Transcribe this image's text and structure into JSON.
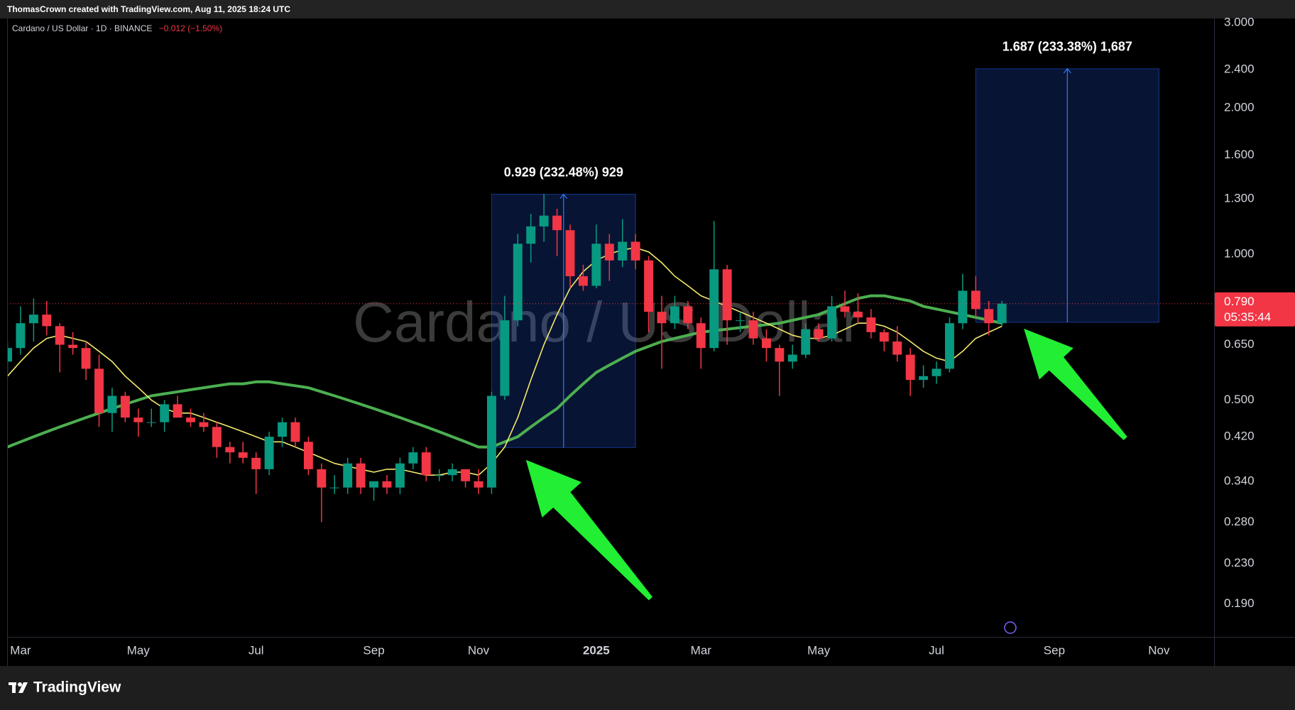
{
  "header": "ThomasCrown created with TradingView.com, Aug 11, 2025 18:24 UTC",
  "footer": "TradingView",
  "chart_data": {
    "type": "candlestick",
    "legend": "Cardano / US Dollar · 1D · BINANCE",
    "change": "−0.012 (−1.50%)",
    "watermark": "Cardano / US Dollar",
    "categories": [
      null,
      "Mar",
      null,
      null,
      null,
      null,
      null,
      null,
      null,
      null,
      "May",
      null,
      null,
      null,
      null,
      null,
      null,
      null,
      null,
      "Jul",
      null,
      null,
      null,
      null,
      null,
      null,
      null,
      null,
      "Sep",
      null,
      null,
      null,
      null,
      null,
      null,
      null,
      "Nov",
      null,
      null,
      null,
      null,
      null,
      null,
      null,
      null,
      "2025",
      null,
      null,
      null,
      null,
      null,
      null,
      null,
      "Mar",
      null,
      null,
      null,
      null,
      null,
      null,
      null,
      null,
      "May",
      null,
      null,
      null,
      null,
      null,
      null,
      null,
      null,
      "Jul",
      null,
      null,
      null,
      null,
      null,
      null,
      null,
      null,
      "Sep",
      null,
      null,
      null,
      null,
      null,
      null,
      null,
      "Nov",
      null,
      null,
      null,
      null
    ],
    "open": [
      0.6,
      0.64,
      0.72,
      0.75,
      0.71,
      0.65,
      0.64,
      0.58,
      0.47,
      0.51,
      0.46,
      0.45,
      0.45,
      0.49,
      0.46,
      0.45,
      0.44,
      0.4,
      0.39,
      0.38,
      0.36,
      0.42,
      0.45,
      0.41,
      0.36,
      0.33,
      0.33,
      0.37,
      0.33,
      0.34,
      0.33,
      0.37,
      0.39,
      0.35,
      0.35,
      0.36,
      0.34,
      0.33,
      0.51,
      0.73,
      1.05,
      1.14,
      1.2,
      1.12,
      0.9,
      0.86,
      1.05,
      0.97,
      1.06,
      0.97,
      0.76,
      0.72,
      0.78,
      0.72,
      0.64,
      0.93,
      0.73,
      0.73,
      0.67,
      0.64,
      0.6,
      0.62,
      0.7,
      0.67,
      0.78,
      0.76,
      0.74,
      0.69,
      0.66,
      0.62,
      0.55,
      0.56,
      0.58,
      0.72,
      0.84,
      0.77,
      0.72,
      null,
      null,
      null,
      null,
      null,
      null,
      null,
      null,
      null,
      null,
      null,
      null,
      null,
      null,
      null,
      null
    ],
    "high": [
      0.66,
      0.78,
      0.81,
      0.8,
      0.72,
      0.69,
      0.66,
      0.62,
      0.53,
      0.52,
      0.48,
      0.48,
      0.5,
      0.51,
      0.48,
      0.47,
      0.45,
      0.41,
      0.41,
      0.39,
      0.43,
      0.46,
      0.46,
      0.42,
      0.37,
      0.35,
      0.38,
      0.38,
      0.34,
      0.35,
      0.38,
      0.4,
      0.4,
      0.36,
      0.37,
      0.36,
      0.36,
      0.52,
      0.82,
      1.1,
      1.21,
      1.33,
      1.24,
      1.15,
      0.95,
      1.15,
      1.1,
      1.18,
      1.1,
      0.99,
      0.82,
      0.82,
      0.8,
      0.74,
      1.17,
      0.95,
      0.76,
      0.76,
      0.7,
      0.65,
      0.65,
      0.72,
      0.72,
      0.82,
      0.84,
      0.83,
      0.77,
      0.7,
      0.71,
      0.64,
      0.59,
      0.6,
      0.74,
      0.91,
      0.9,
      0.8,
      0.8,
      null,
      null,
      null,
      null,
      null,
      null,
      null,
      null,
      null,
      null,
      null,
      null,
      null,
      null,
      null,
      null
    ],
    "low": [
      0.57,
      0.62,
      0.66,
      0.68,
      0.57,
      0.62,
      0.55,
      0.44,
      0.43,
      0.45,
      0.42,
      0.44,
      0.43,
      0.46,
      0.44,
      0.43,
      0.38,
      0.37,
      0.37,
      0.32,
      0.35,
      0.4,
      0.4,
      0.35,
      0.28,
      0.32,
      0.32,
      0.32,
      0.31,
      0.32,
      0.32,
      0.36,
      0.34,
      0.34,
      0.34,
      0.33,
      0.32,
      0.32,
      0.5,
      0.71,
      0.96,
      1.06,
      0.99,
      0.85,
      0.84,
      0.85,
      0.88,
      0.94,
      0.93,
      0.69,
      0.58,
      0.7,
      0.7,
      0.58,
      0.63,
      0.65,
      0.69,
      0.65,
      0.6,
      0.51,
      0.58,
      0.61,
      0.66,
      0.66,
      0.74,
      0.72,
      0.67,
      0.63,
      0.6,
      0.51,
      0.53,
      0.54,
      0.57,
      0.7,
      0.74,
      0.68,
      0.71,
      null,
      null,
      null,
      null,
      null,
      null,
      null,
      null,
      null,
      null,
      null,
      null,
      null,
      null,
      null,
      null
    ],
    "close": [
      0.64,
      0.72,
      0.75,
      0.71,
      0.65,
      0.64,
      0.58,
      0.47,
      0.51,
      0.46,
      0.45,
      0.45,
      0.49,
      0.46,
      0.45,
      0.44,
      0.4,
      0.39,
      0.38,
      0.36,
      0.42,
      0.45,
      0.41,
      0.36,
      0.33,
      0.33,
      0.37,
      0.33,
      0.34,
      0.33,
      0.37,
      0.39,
      0.35,
      0.35,
      0.36,
      0.34,
      0.33,
      0.51,
      0.73,
      1.05,
      1.14,
      1.2,
      1.12,
      0.9,
      0.86,
      1.05,
      0.97,
      1.06,
      0.97,
      0.76,
      0.72,
      0.78,
      0.72,
      0.64,
      0.93,
      0.73,
      0.73,
      0.67,
      0.64,
      0.6,
      0.62,
      0.7,
      0.67,
      0.78,
      0.76,
      0.74,
      0.69,
      0.66,
      0.62,
      0.55,
      0.56,
      0.58,
      0.72,
      0.84,
      0.77,
      0.72,
      0.79,
      null,
      null,
      null,
      null,
      null,
      null,
      null,
      null,
      null,
      null,
      null,
      null,
      null,
      null,
      null,
      null
    ],
    "up_color": "#089981",
    "down_color": "#f23645",
    "series": [
      {
        "color": "#4caf50",
        "values": [
          0.4,
          0.41,
          0.42,
          0.43,
          0.44,
          0.45,
          0.46,
          0.47,
          0.48,
          0.49,
          0.5,
          0.51,
          0.515,
          0.52,
          0.525,
          0.53,
          0.535,
          0.54,
          0.54,
          0.545,
          0.545,
          0.54,
          0.535,
          0.53,
          0.52,
          0.51,
          0.5,
          0.49,
          0.48,
          0.47,
          0.46,
          0.45,
          0.44,
          0.43,
          0.42,
          0.41,
          0.4,
          0.4,
          0.41,
          0.42,
          0.44,
          0.46,
          0.48,
          0.51,
          0.54,
          0.57,
          0.59,
          0.61,
          0.63,
          0.645,
          0.66,
          0.67,
          0.68,
          0.69,
          0.695,
          0.7,
          0.705,
          0.71,
          0.715,
          0.72,
          0.73,
          0.74,
          0.75,
          0.77,
          0.79,
          0.81,
          0.82,
          0.82,
          0.81,
          0.8,
          0.78,
          0.77,
          0.76,
          0.75,
          0.74,
          0.73,
          0.72,
          null,
          null,
          null,
          null,
          null,
          null,
          null,
          null,
          null,
          null,
          null,
          null,
          null,
          null,
          null,
          null
        ]
      },
      {
        "color": "#f5e96b",
        "values": [
          0.56,
          0.6,
          0.64,
          0.67,
          0.68,
          0.67,
          0.66,
          0.63,
          0.6,
          0.56,
          0.53,
          0.5,
          0.48,
          0.47,
          0.47,
          0.46,
          0.45,
          0.44,
          0.43,
          0.42,
          0.41,
          0.41,
          0.4,
          0.39,
          0.38,
          0.37,
          0.365,
          0.36,
          0.355,
          0.36,
          0.36,
          0.355,
          0.35,
          0.35,
          0.355,
          0.355,
          0.35,
          0.37,
          0.4,
          0.46,
          0.55,
          0.65,
          0.75,
          0.85,
          0.92,
          0.97,
          1.0,
          1.02,
          1.03,
          1.01,
          0.96,
          0.9,
          0.86,
          0.82,
          0.8,
          0.78,
          0.76,
          0.74,
          0.72,
          0.7,
          0.68,
          0.67,
          0.67,
          0.68,
          0.7,
          0.72,
          0.72,
          0.71,
          0.69,
          0.66,
          0.63,
          0.61,
          0.6,
          0.63,
          0.67,
          0.69,
          0.71,
          null,
          null,
          null,
          null,
          null,
          null,
          null,
          null,
          null,
          null,
          null,
          null,
          null,
          null,
          null,
          null
        ]
      }
    ],
    "log_scale": true,
    "ylim": [
      0.1624,
      3.06
    ],
    "yticks": [
      {
        "value": 3,
        "label": "3.000"
      },
      {
        "value": 2.4,
        "label": "2.400"
      },
      {
        "value": 2,
        "label": "2.000"
      },
      {
        "value": 1.6,
        "label": "1.600"
      },
      {
        "value": 1.3,
        "label": "1.300"
      },
      {
        "value": 1,
        "label": "1.000"
      },
      {
        "value": 0.65,
        "label": "0.650"
      },
      {
        "value": 0.5,
        "label": "0.500"
      },
      {
        "value": 0.42,
        "label": "0.420"
      },
      {
        "value": 0.34,
        "label": "0.340"
      },
      {
        "value": 0.28,
        "label": "0.280"
      },
      {
        "value": 0.23,
        "label": "0.230"
      },
      {
        "value": 0.19,
        "label": "0.190"
      }
    ],
    "last_price": {
      "value": 0.79,
      "label": "0.790"
    },
    "countdown": "05:35:44",
    "measures": [
      {
        "label": "0.929 (232.48%) 929",
        "from": 0.399,
        "to": 1.328,
        "x_from": 37,
        "x_to": 48
      },
      {
        "label": "1.687 (233.38%) 1,687",
        "from": 0.723,
        "to": 2.41,
        "x_from": 74,
        "x_to": 88
      }
    ]
  }
}
